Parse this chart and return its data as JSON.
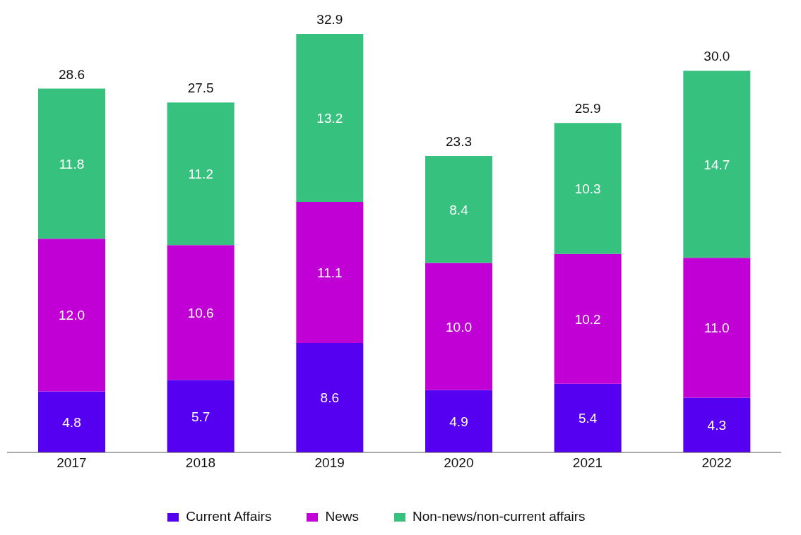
{
  "chart_data": {
    "type": "bar",
    "stacked": true,
    "categories": [
      "2017",
      "2018",
      "2019",
      "2020",
      "2021",
      "2022"
    ],
    "series": [
      {
        "name": "Current Affairs",
        "color": "#5500f0",
        "values": [
          4.8,
          5.7,
          8.6,
          4.9,
          5.4,
          4.3
        ],
        "value_labels": [
          "4.8",
          "5.7",
          "8.6",
          "4.9",
          "5.4",
          "4.3"
        ]
      },
      {
        "name": "News",
        "color": "#c000d4",
        "values": [
          12.0,
          10.6,
          11.1,
          10.0,
          10.2,
          11.0
        ],
        "value_labels": [
          "12.0",
          "10.6",
          "11.1",
          "10.0",
          "10.2",
          "11.0"
        ]
      },
      {
        "name": "Non-news/non-current affairs",
        "color": "#36c17f",
        "values": [
          11.8,
          11.2,
          13.2,
          8.4,
          10.3,
          14.7
        ],
        "value_labels": [
          "11.8",
          "11.2",
          "13.2",
          "8.4",
          "10.3",
          "14.7"
        ]
      }
    ],
    "totals": [
      "28.6",
      "27.5",
      "32.9",
      "23.3",
      "25.9",
      "30.0"
    ],
    "legend": "bottom",
    "grid": false
  }
}
